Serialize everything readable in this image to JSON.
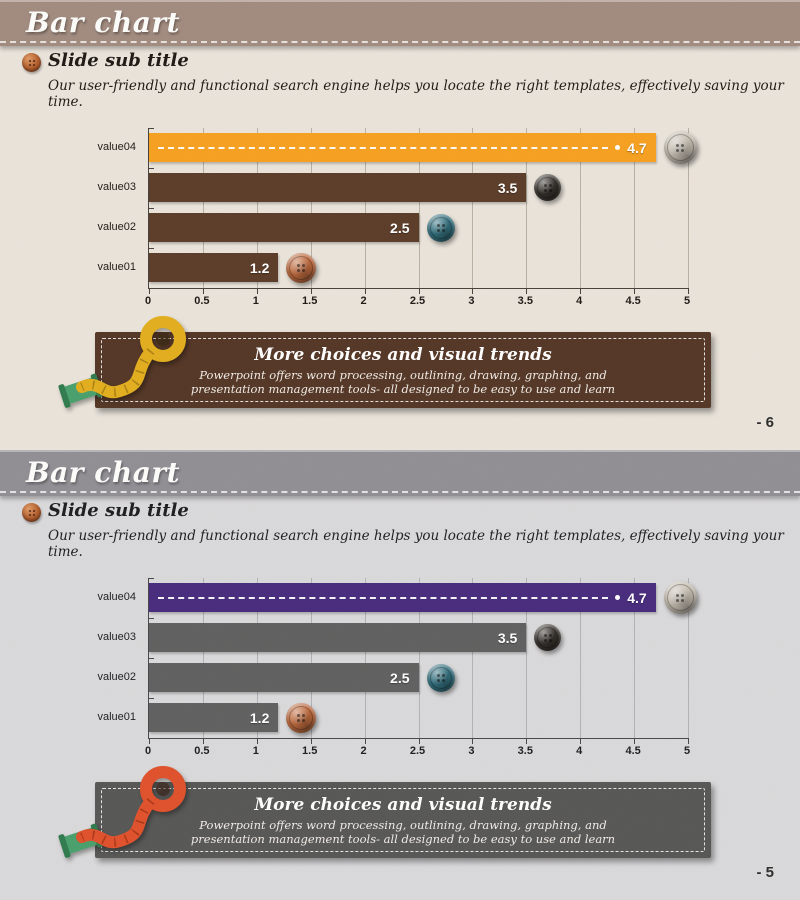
{
  "slides": [
    {
      "title": "Bar chart",
      "subtitle_heading": "Slide sub title",
      "subtitle_text": "Our user-friendly and functional search engine helps you locate the right templates, effectively saving your time.",
      "callout": {
        "title": "More choices and visual trends",
        "line1": "Powerpoint offers word processing, outlining, drawing, graphing, and",
        "line2": "presentation management tools- all designed to be easy to use and learn"
      },
      "page_number": "- 6",
      "bullet_icon": "sewing-button",
      "decoration": "measuring-tape",
      "colors": {
        "header": "#a18a7e",
        "background": "#eae4db",
        "text": "#1d1813",
        "axis": "#46403a",
        "grid": "#b8b0a3",
        "callout_bg": "#533524",
        "tape": "#e3ae1d",
        "tape_dark": "#9c7410",
        "spool": "#48a06b",
        "spool_dark": "#2e7a4d"
      }
    },
    {
      "title": "Bar chart",
      "subtitle_heading": "Slide sub title",
      "subtitle_text": "Our user-friendly and functional search engine helps you locate the right templates, effectively saving your time.",
      "callout": {
        "title": "More choices and visual trends",
        "line1": "Powerpoint offers word processing, outlining, drawing, graphing, and",
        "line2": "presentation management tools- all designed to be easy to use and learn"
      },
      "page_number": "- 5",
      "bullet_icon": "sewing-button",
      "decoration": "measuring-tape",
      "colors": {
        "header": "#908e94",
        "background": "#dad9db",
        "text": "#1c1c1e",
        "axis": "#47474b",
        "grid": "#b2b1b4",
        "callout_bg": "#565655",
        "tape": "#e0502a",
        "tape_dark": "#9c2f12",
        "spool": "#48a06b",
        "spool_dark": "#2e7a4d"
      }
    }
  ],
  "chart_data": [
    {
      "type": "bar",
      "orientation": "horizontal",
      "title": "",
      "xlabel": "",
      "ylabel": "",
      "categories": [
        "value01",
        "value02",
        "value03",
        "value04"
      ],
      "values": [
        1.2,
        2.5,
        3.5,
        4.7
      ],
      "value_labels": [
        "1.2",
        "2.5",
        "3.5",
        "4.7"
      ],
      "xlim": [
        0,
        5
      ],
      "xtick_step": 0.5,
      "xticks": [
        "0",
        "0.5",
        "1",
        "1.5",
        "2",
        "2.5",
        "3",
        "3.5",
        "4",
        "4.5",
        "5"
      ],
      "grid": true,
      "bar_color": "#5a3b27",
      "highlight_category": "value04",
      "highlight_color": "#f7a01e",
      "buttons": [
        {
          "category": "value01",
          "name": "copper-button",
          "color": "#c0693b",
          "size": 30
        },
        {
          "category": "value02",
          "name": "teal-button",
          "color": "#2f6f7e",
          "size": 28
        },
        {
          "category": "value03",
          "name": "black-button",
          "color": "#35302b",
          "size": 27
        },
        {
          "category": "value04",
          "name": "silver-button",
          "color": "#c7bfb2",
          "size": 33
        }
      ]
    },
    {
      "type": "bar",
      "orientation": "horizontal",
      "title": "",
      "xlabel": "",
      "ylabel": "",
      "categories": [
        "value01",
        "value02",
        "value03",
        "value04"
      ],
      "values": [
        1.2,
        2.5,
        3.5,
        4.7
      ],
      "value_labels": [
        "1.2",
        "2.5",
        "3.5",
        "4.7"
      ],
      "xlim": [
        0,
        5
      ],
      "xtick_step": 0.5,
      "xticks": [
        "0",
        "0.5",
        "1",
        "1.5",
        "2",
        "2.5",
        "3",
        "3.5",
        "4",
        "4.5",
        "5"
      ],
      "grid": true,
      "bar_color": "#5f5f5f",
      "highlight_category": "value04",
      "highlight_color": "#472a7d",
      "buttons": [
        {
          "category": "value01",
          "name": "copper-button",
          "color": "#c0693b",
          "size": 30
        },
        {
          "category": "value02",
          "name": "teal-button",
          "color": "#2f6f7e",
          "size": 28
        },
        {
          "category": "value03",
          "name": "black-button",
          "color": "#35302b",
          "size": 27
        },
        {
          "category": "value04",
          "name": "silver-button",
          "color": "#c7bfb2",
          "size": 33
        }
      ]
    }
  ]
}
